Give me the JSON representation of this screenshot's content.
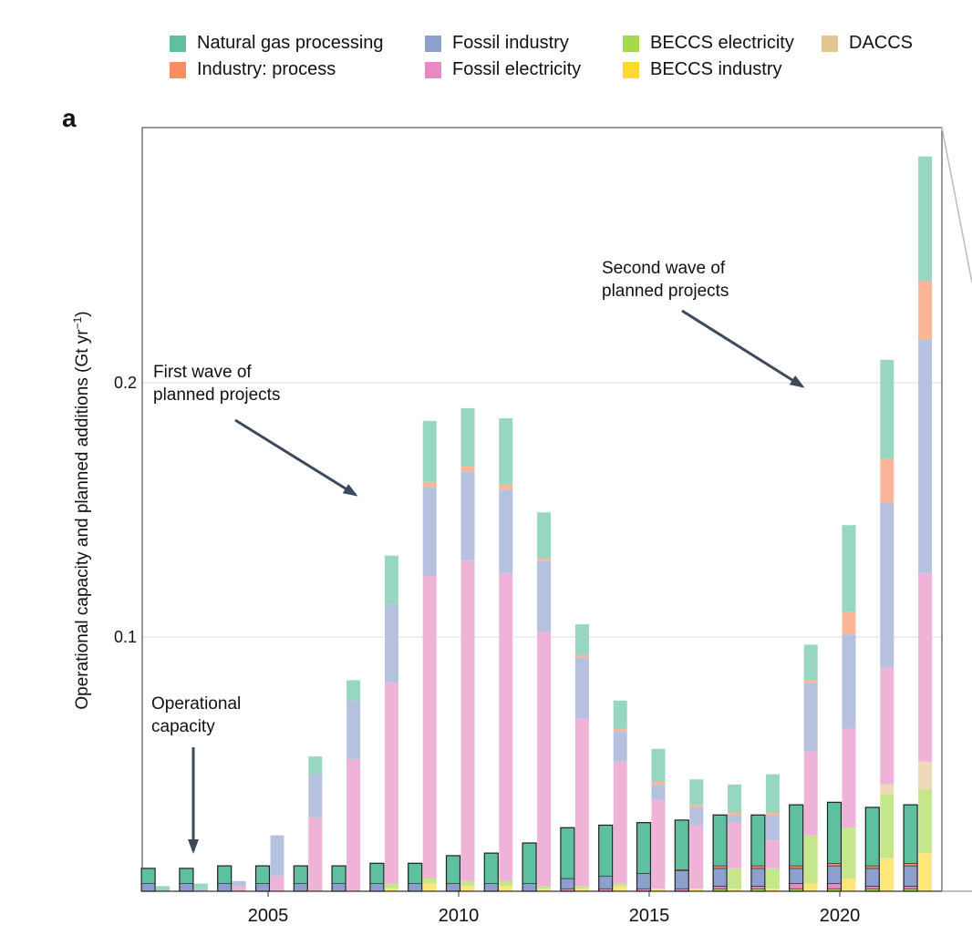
{
  "panel_label": "a",
  "legend": [
    {
      "label": "Natural gas processing",
      "color": "#5fc0a0"
    },
    {
      "label": "Fossil industry",
      "color": "#8d9fcc"
    },
    {
      "label": "BECCS electricity",
      "color": "#a8d84e"
    },
    {
      "label": "DACCS",
      "color": "#e5c494"
    },
    {
      "label": "Industry: process",
      "color": "#f98d62"
    },
    {
      "label": "Fossil electricity",
      "color": "#e78ac3"
    },
    {
      "label": "BECCS industry",
      "color": "#ffd92f"
    }
  ],
  "annotations": {
    "first_wave": [
      "First wave of",
      "planned projects"
    ],
    "second_wave": [
      "Second wave of",
      "planned projects"
    ],
    "operational": [
      "Operational",
      "capacity"
    ]
  },
  "chart_data": {
    "type": "bar",
    "stacked": true,
    "xlabel": "",
    "ylabel": "Operational capacity and planned additions (Gt yr",
    "ylabel_unit_sup": "−1",
    "ylabel_suffix": ")",
    "x_ticks": [
      2005,
      2010,
      2015,
      2020
    ],
    "y_ticks": [
      {
        "value": 0.1,
        "label": "0.1"
      },
      {
        "value": 0.2,
        "label": "0.2"
      }
    ],
    "ylim": [
      0,
      0.3
    ],
    "xlim": [
      2001.5,
      2023
    ],
    "grid": "horizontal",
    "stack_order": [
      "BECCS industry",
      "BECCS electricity",
      "DACCS",
      "Fossil electricity",
      "Fossil industry",
      "Industry: process",
      "Natural gas processing"
    ],
    "colors": {
      "Natural gas processing": "#5fc0a0",
      "Industry: process": "#f98d62",
      "Fossil industry": "#8d9fcc",
      "Fossil electricity": "#e78ac3",
      "BECCS electricity": "#a8d84e",
      "BECCS industry": "#ffd92f",
      "DACCS": "#e5c494"
    },
    "operational": [
      {
        "year": 2002,
        "values": {
          "Fossil industry": 0.003,
          "Natural gas processing": 0.006
        }
      },
      {
        "year": 2003,
        "values": {
          "Fossil industry": 0.003,
          "Natural gas processing": 0.006
        }
      },
      {
        "year": 2004,
        "values": {
          "Fossil industry": 0.003,
          "Natural gas processing": 0.007
        }
      },
      {
        "year": 2005,
        "values": {
          "Fossil industry": 0.003,
          "Natural gas processing": 0.007
        }
      },
      {
        "year": 2006,
        "values": {
          "Fossil industry": 0.003,
          "Natural gas processing": 0.007
        }
      },
      {
        "year": 2007,
        "values": {
          "Fossil industry": 0.003,
          "Natural gas processing": 0.007
        }
      },
      {
        "year": 2008,
        "values": {
          "Fossil industry": 0.003,
          "Natural gas processing": 0.008
        }
      },
      {
        "year": 2009,
        "values": {
          "Fossil industry": 0.003,
          "Natural gas processing": 0.008
        }
      },
      {
        "year": 2010,
        "values": {
          "Fossil industry": 0.003,
          "Natural gas processing": 0.011
        }
      },
      {
        "year": 2011,
        "values": {
          "Fossil industry": 0.003,
          "Natural gas processing": 0.012
        }
      },
      {
        "year": 2012,
        "values": {
          "Fossil industry": 0.003,
          "Natural gas processing": 0.016
        }
      },
      {
        "year": 2013,
        "values": {
          "Fossil electricity": 0.001,
          "Fossil industry": 0.004,
          "Natural gas processing": 0.02
        }
      },
      {
        "year": 2014,
        "values": {
          "Fossil electricity": 0.001,
          "Fossil industry": 0.005,
          "Natural gas processing": 0.02
        }
      },
      {
        "year": 2015,
        "values": {
          "Fossil electricity": 0.001,
          "Fossil industry": 0.006,
          "Natural gas processing": 0.02
        }
      },
      {
        "year": 2016,
        "values": {
          "Fossil electricity": 0.001,
          "Fossil industry": 0.007,
          "Industry: process": 0.0005,
          "Natural gas processing": 0.0195
        }
      },
      {
        "year": 2017,
        "values": {
          "BECCS electricity": 0.001,
          "Fossil electricity": 0.001,
          "Fossil industry": 0.007,
          "Industry: process": 0.001,
          "Natural gas processing": 0.02
        }
      },
      {
        "year": 2018,
        "values": {
          "BECCS electricity": 0.001,
          "Fossil electricity": 0.001,
          "Fossil industry": 0.007,
          "Industry: process": 0.001,
          "Natural gas processing": 0.02
        }
      },
      {
        "year": 2019,
        "values": {
          "BECCS electricity": 0.001,
          "Fossil electricity": 0.002,
          "Fossil industry": 0.006,
          "Industry: process": 0.001,
          "Natural gas processing": 0.024
        }
      },
      {
        "year": 2020,
        "values": {
          "BECCS electricity": 0.001,
          "Fossil electricity": 0.002,
          "Fossil industry": 0.007,
          "Industry: process": 0.001,
          "Natural gas processing": 0.024
        }
      },
      {
        "year": 2021,
        "values": {
          "BECCS electricity": 0.001,
          "Fossil electricity": 0.001,
          "Fossil industry": 0.007,
          "Industry: process": 0.001,
          "Natural gas processing": 0.023
        }
      },
      {
        "year": 2022,
        "values": {
          "BECCS electricity": 0.001,
          "Fossil electricity": 0.001,
          "Fossil industry": 0.008,
          "Industry: process": 0.001,
          "Natural gas processing": 0.023
        }
      }
    ],
    "planned": [
      {
        "year": 2002,
        "values": {
          "Natural gas processing": 0.002
        }
      },
      {
        "year": 2003,
        "values": {
          "Fossil industry": 0.001,
          "Natural gas processing": 0.002
        }
      },
      {
        "year": 2004,
        "values": {
          "Fossil electricity": 0.002,
          "Fossil industry": 0.002
        }
      },
      {
        "year": 2005,
        "values": {
          "Fossil electricity": 0.006,
          "Fossil industry": 0.016
        }
      },
      {
        "year": 2006,
        "values": {
          "Fossil electricity": 0.029,
          "Fossil industry": 0.017,
          "Natural gas processing": 0.007
        }
      },
      {
        "year": 2007,
        "values": {
          "Fossil electricity": 0.052,
          "Fossil industry": 0.023,
          "Natural gas processing": 0.008
        }
      },
      {
        "year": 2008,
        "values": {
          "BECCS industry": 0.001,
          "BECCS electricity": 0.002,
          "Fossil electricity": 0.079,
          "Fossil industry": 0.031,
          "Natural gas processing": 0.019
        }
      },
      {
        "year": 2009,
        "values": {
          "BECCS industry": 0.003,
          "BECCS electricity": 0.002,
          "Fossil electricity": 0.119,
          "Fossil industry": 0.035,
          "Industry: process": 0.002,
          "Natural gas processing": 0.024
        }
      },
      {
        "year": 2010,
        "values": {
          "BECCS industry": 0.002,
          "BECCS electricity": 0.002,
          "Fossil electricity": 0.126,
          "Fossil industry": 0.035,
          "Industry: process": 0.002,
          "Natural gas processing": 0.023
        }
      },
      {
        "year": 2011,
        "values": {
          "BECCS industry": 0.002,
          "BECCS electricity": 0.002,
          "Fossil electricity": 0.121,
          "Fossil industry": 0.033,
          "Industry: process": 0.002,
          "Natural gas processing": 0.026
        }
      },
      {
        "year": 2012,
        "values": {
          "BECCS industry": 0.001,
          "BECCS electricity": 0.001,
          "Fossil electricity": 0.1,
          "Fossil industry": 0.028,
          "Industry: process": 0.001,
          "Natural gas processing": 0.018
        }
      },
      {
        "year": 2013,
        "values": {
          "BECCS industry": 0.001,
          "BECCS electricity": 0.001,
          "Fossil electricity": 0.066,
          "Fossil industry": 0.024,
          "Industry: process": 0.001,
          "Natural gas processing": 0.012
        }
      },
      {
        "year": 2014,
        "values": {
          "BECCS industry": 0.002,
          "BECCS electricity": 0.001,
          "Fossil electricity": 0.048,
          "Fossil industry": 0.012,
          "Industry: process": 0.001,
          "Natural gas processing": 0.011
        }
      },
      {
        "year": 2015,
        "values": {
          "BECCS industry": 0.001,
          "Fossil electricity": 0.035,
          "Fossil industry": 0.006,
          "Industry: process": 0.001,
          "Natural gas processing": 0.013
        }
      },
      {
        "year": 2016,
        "values": {
          "BECCS industry": 0.001,
          "Fossil electricity": 0.025,
          "Fossil industry": 0.007,
          "Industry: process": 0.001,
          "Natural gas processing": 0.01
        }
      },
      {
        "year": 2017,
        "values": {
          "BECCS industry": 0.001,
          "BECCS electricity": 0.008,
          "Fossil electricity": 0.018,
          "Fossil industry": 0.003,
          "Industry: process": 0.001,
          "Natural gas processing": 0.011
        }
      },
      {
        "year": 2018,
        "values": {
          "BECCS industry": 0.001,
          "BECCS electricity": 0.008,
          "Fossil electricity": 0.011,
          "Fossil industry": 0.01,
          "Industry: process": 0.001,
          "Natural gas processing": 0.015
        }
      },
      {
        "year": 2019,
        "values": {
          "BECCS industry": 0.003,
          "BECCS electricity": 0.019,
          "Fossil electricity": 0.033,
          "Fossil industry": 0.027,
          "Industry: process": 0.001,
          "Natural gas processing": 0.014
        }
      },
      {
        "year": 2020,
        "values": {
          "BECCS industry": 0.005,
          "BECCS electricity": 0.02,
          "Fossil electricity": 0.039,
          "Fossil industry": 0.037,
          "Industry: process": 0.009,
          "Natural gas processing": 0.034
        }
      },
      {
        "year": 2021,
        "values": {
          "DACCS": 0.004,
          "BECCS industry": 0.013,
          "BECCS electricity": 0.025,
          "Fossil electricity": 0.046,
          "Fossil industry": 0.065,
          "Industry: process": 0.017,
          "Natural gas processing": 0.039
        }
      },
      {
        "year": 2022,
        "values": {
          "DACCS": 0.011,
          "BECCS industry": 0.015,
          "BECCS electricity": 0.025,
          "Fossil electricity": 0.074,
          "Fossil industry": 0.092,
          "Industry: process": 0.023,
          "Natural gas processing": 0.049
        }
      }
    ]
  }
}
